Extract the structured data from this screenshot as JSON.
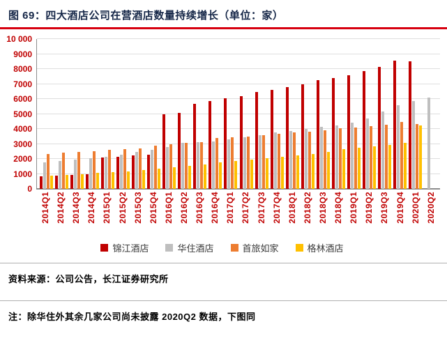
{
  "header": {
    "title": "图 69：四大酒店公司在营酒店数量持续增长（单位：家）"
  },
  "chart_data": {
    "type": "bar",
    "title": "四大酒店公司在营酒店数量持续增长（单位：家）",
    "xlabel": "",
    "ylabel": "",
    "grid": true,
    "legend_position": "bottom",
    "ylim": [
      0,
      10000
    ],
    "ytick_step": 1000,
    "ytick_labels": [
      "0",
      "1000",
      "2000",
      "3000",
      "4000",
      "5000",
      "6000",
      "7000",
      "8000",
      "9000",
      "10 000"
    ],
    "categories": [
      "2014Q1",
      "2014Q2",
      "2014Q3",
      "2014Q4",
      "2015Q1",
      "2015Q2",
      "2015Q3",
      "2015Q4",
      "2016Q1",
      "2016Q2",
      "2016Q3",
      "2016Q4",
      "2017Q1",
      "2017Q2",
      "2017Q3",
      "2017Q4",
      "2018Q1",
      "2018Q2",
      "2018Q3",
      "2018Q4",
      "2019Q1",
      "2019Q2",
      "2019Q3",
      "2019Q4",
      "2020Q1",
      "2020Q2"
    ],
    "series": [
      {
        "key": "jinjiang",
        "name": "锦江酒店",
        "color": "#c00000",
        "values": [
          850,
          900,
          950,
          1000,
          2100,
          2150,
          2250,
          2300,
          5000,
          5050,
          5700,
          5850,
          6050,
          6200,
          6450,
          6600,
          6800,
          7000,
          7250,
          7400,
          7600,
          7850,
          8150,
          8550,
          8500,
          null
        ]
      },
      {
        "key": "huazhu",
        "name": "华住酒店",
        "color": "#bfbfbf",
        "values": [
          1750,
          1850,
          1950,
          2050,
          2150,
          2300,
          2450,
          2600,
          2800,
          3050,
          3100,
          3150,
          3300,
          3450,
          3600,
          3750,
          3850,
          4000,
          4150,
          4250,
          4400,
          4700,
          5150,
          5600,
          5850,
          6100
        ]
      },
      {
        "key": "btg-homeinns",
        "name": "首旅如家",
        "color": "#ed7d31",
        "values": [
          2350,
          2400,
          2450,
          2500,
          2600,
          2650,
          2700,
          2900,
          3000,
          3050,
          3100,
          3400,
          3450,
          3500,
          3600,
          3700,
          3750,
          3800,
          3900,
          4050,
          4100,
          4200,
          4300,
          4450,
          4350,
          null
        ]
      },
      {
        "key": "greentree",
        "name": "格林酒店",
        "color": "#ffc000",
        "values": [
          900,
          950,
          1000,
          1050,
          1100,
          1150,
          1250,
          1350,
          1450,
          1550,
          1650,
          1750,
          1850,
          1950,
          2050,
          2150,
          2250,
          2350,
          2450,
          2650,
          2750,
          2850,
          2950,
          3050,
          4250,
          null
        ]
      }
    ]
  },
  "footer": {
    "source_label": "资料来源：",
    "source_text": "公司公告，长江证券研究所",
    "note": "注：除华住外其余几家公司尚未披露 2020Q2 数据，下图同"
  },
  "colors": {
    "accent_red": "#d7000f",
    "axis_label": "#c00000",
    "divider_gray": "#b0b0b0"
  }
}
